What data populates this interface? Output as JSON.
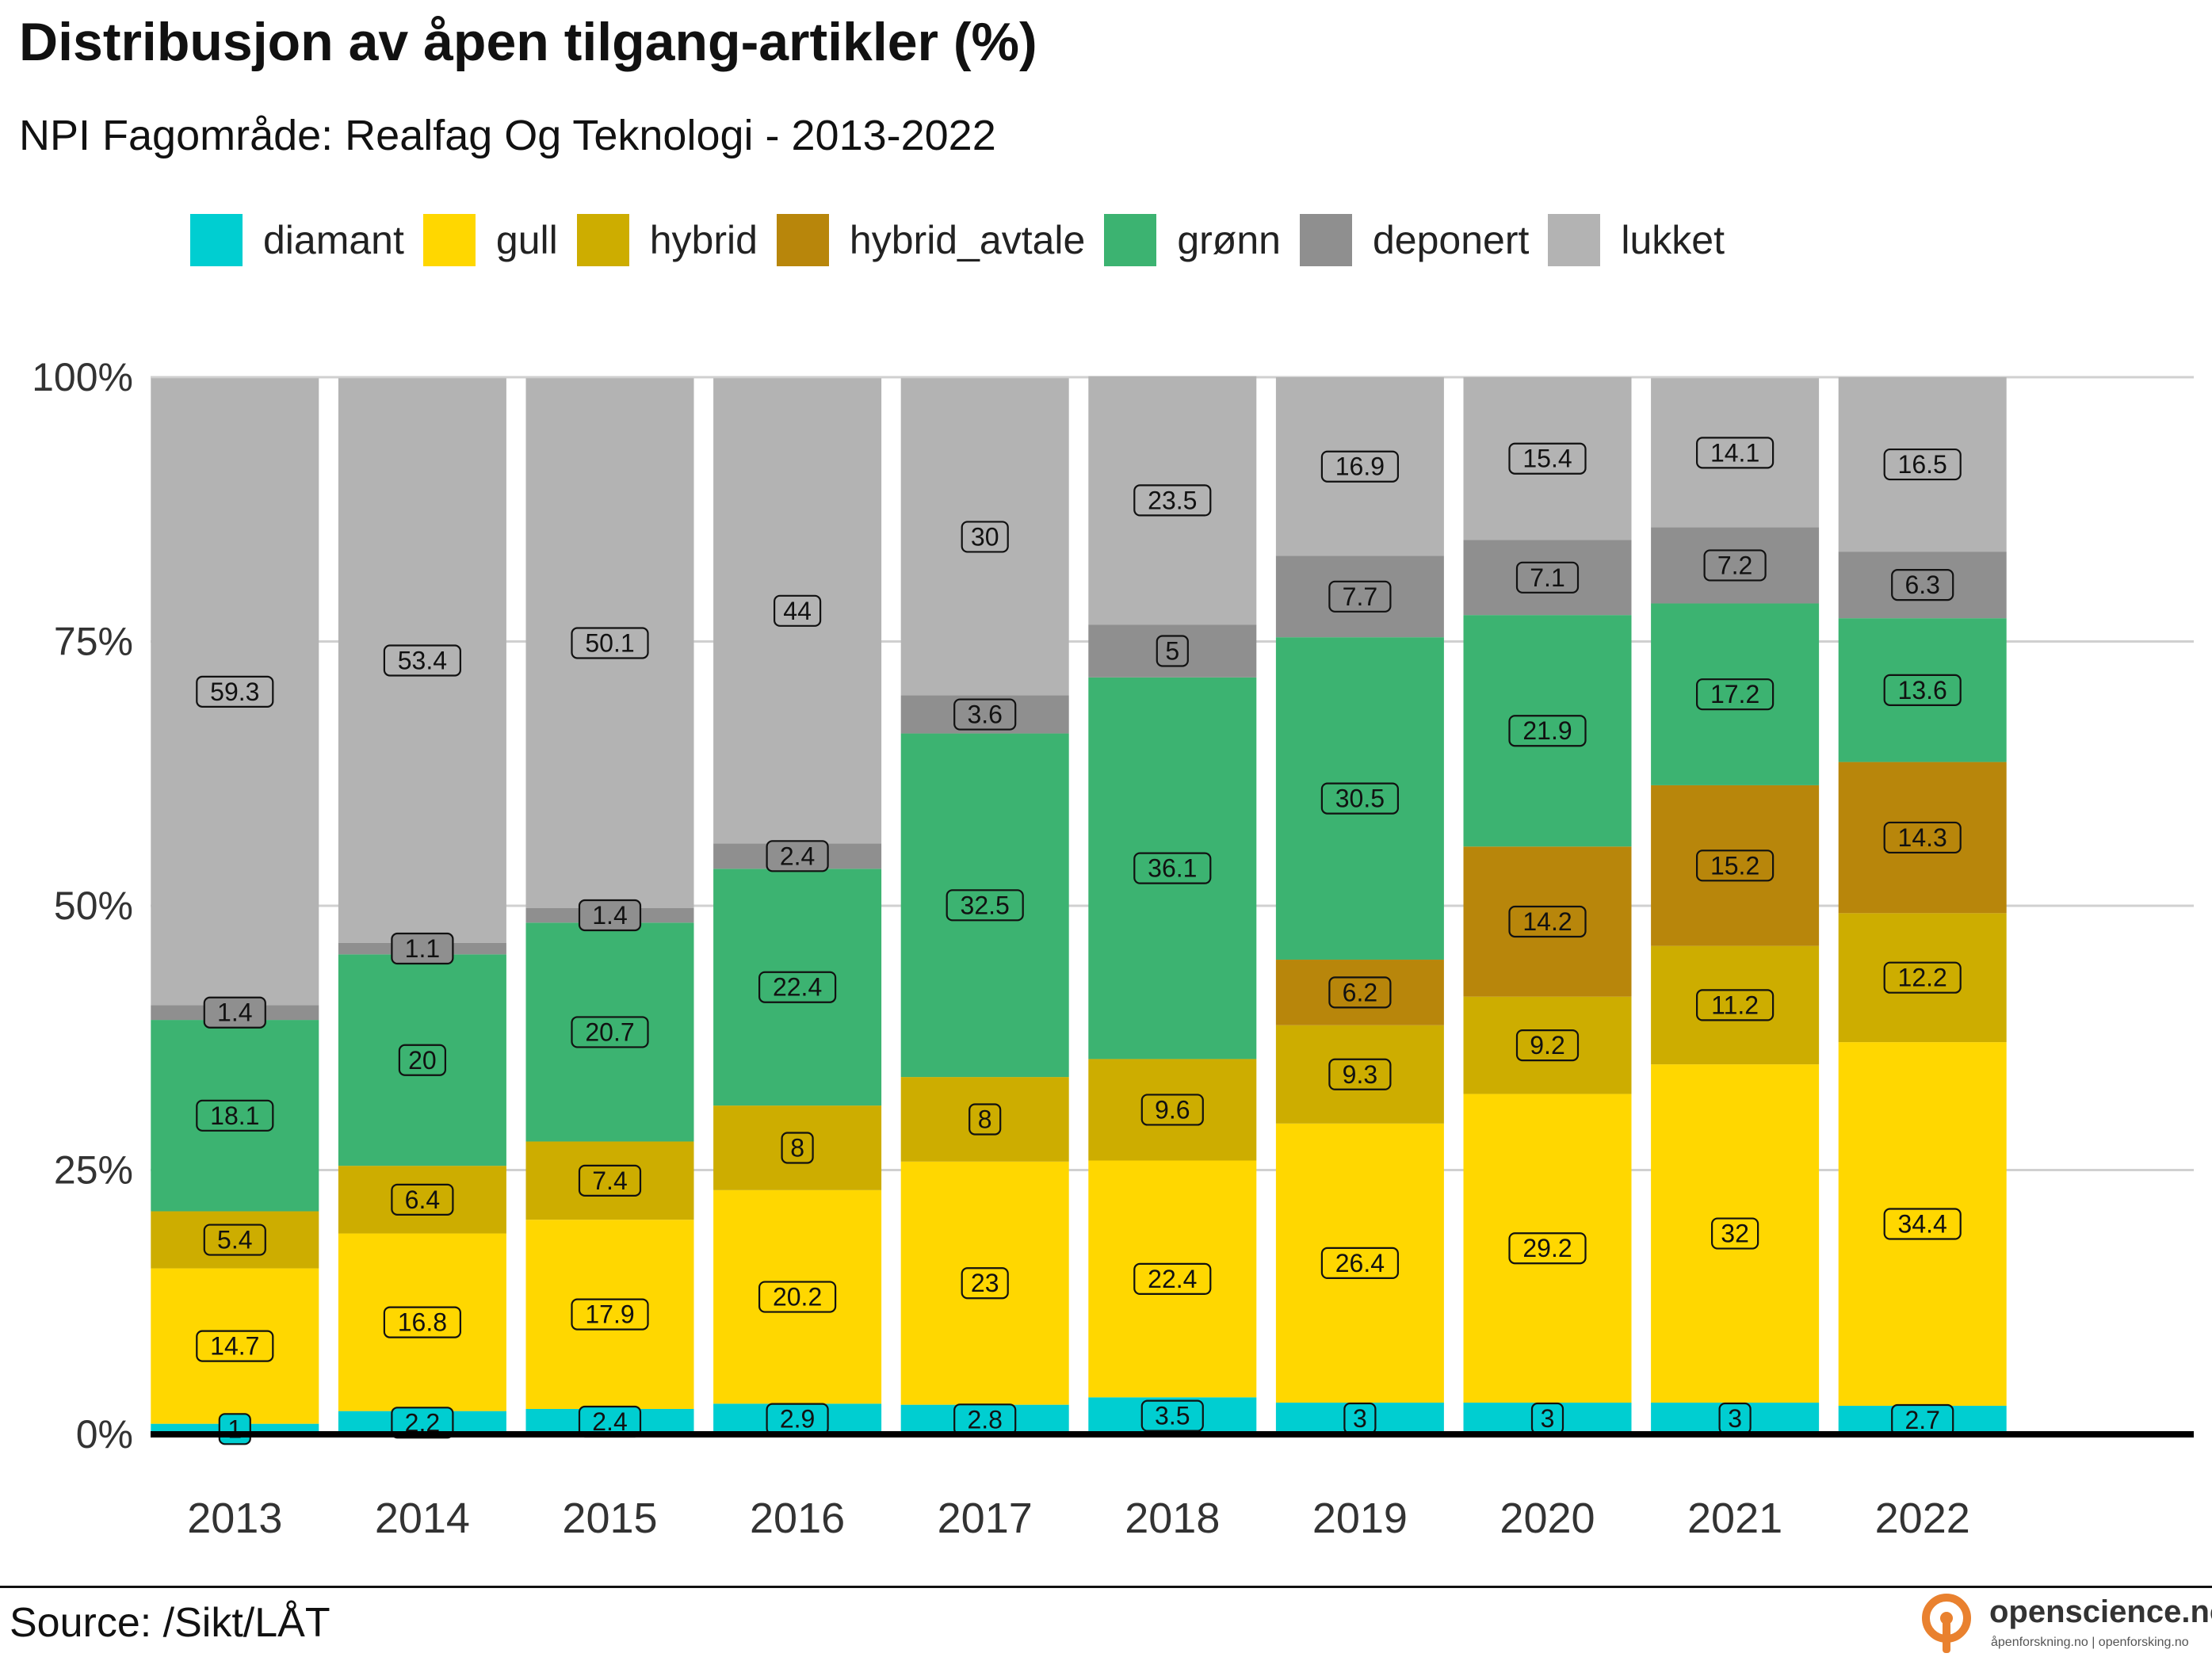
{
  "title": "Distribusjon av åpen tilgang-artikler (%)",
  "subtitle": "NPI Fagområde: Realfag Og Teknologi - 2013-2022",
  "source": "Source: /Sikt/LÅT",
  "logo": {
    "name": "openscience.no",
    "tagline": "åpenforskning.no | openforsking.no",
    "color": "#E9812F"
  },
  "chart_data": {
    "type": "bar",
    "stacked": true,
    "categories": [
      "2013",
      "2014",
      "2015",
      "2016",
      "2017",
      "2018",
      "2019",
      "2020",
      "2021",
      "2022"
    ],
    "ylim": [
      0,
      100
    ],
    "yticks": [
      0,
      25,
      50,
      75,
      100
    ],
    "ytick_labels": [
      "0%",
      "25%",
      "50%",
      "75%",
      "100%"
    ],
    "grid": true,
    "legend_position": "top",
    "series": [
      {
        "name": "diamant",
        "color": "#00CED1",
        "values": [
          1,
          2.2,
          2.4,
          2.9,
          2.8,
          3.5,
          3,
          3,
          3,
          2.7
        ]
      },
      {
        "name": "gull",
        "color": "#FFD700",
        "values": [
          14.7,
          16.8,
          17.9,
          20.2,
          23,
          22.4,
          26.4,
          29.2,
          32,
          34.4
        ]
      },
      {
        "name": "hybrid",
        "color": "#CDAD00",
        "values": [
          5.4,
          6.4,
          7.4,
          8,
          8,
          9.6,
          9.3,
          9.2,
          11.2,
          12.2
        ]
      },
      {
        "name": "hybrid_avtale",
        "color": "#B8860B",
        "values": [
          null,
          null,
          null,
          null,
          null,
          null,
          6.2,
          14.2,
          15.2,
          14.3
        ]
      },
      {
        "name": "grønn",
        "color": "#3CB371",
        "values": [
          18.1,
          20,
          20.7,
          22.4,
          32.5,
          36.1,
          30.5,
          21.9,
          17.2,
          13.6
        ]
      },
      {
        "name": "deponert",
        "color": "#8F8F8F",
        "values": [
          1.4,
          1.1,
          1.4,
          2.4,
          3.6,
          5,
          7.7,
          7.1,
          7.2,
          6.3
        ]
      },
      {
        "name": "lukket",
        "color": "#B3B3B3",
        "values": [
          59.3,
          53.4,
          50.1,
          44,
          30,
          23.5,
          16.9,
          15.4,
          14.1,
          16.5
        ]
      }
    ]
  }
}
